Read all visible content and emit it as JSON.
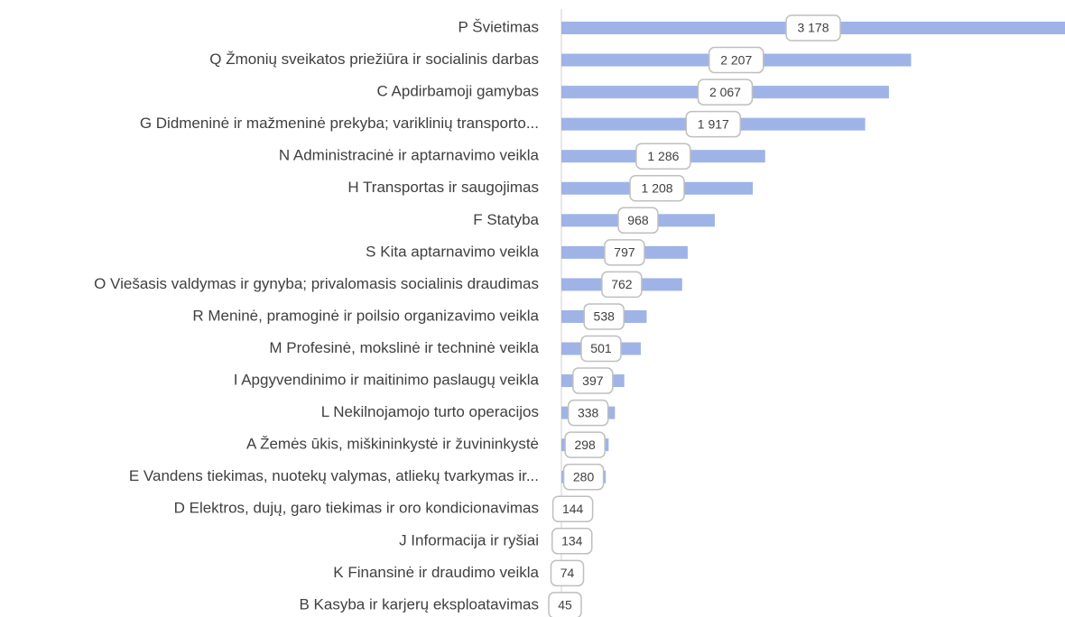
{
  "chart_data": {
    "type": "barh",
    "color": "#9fb3e6",
    "categories": [
      "P Švietimas",
      "Q Žmonių sveikatos priežiūra ir socialinis darbas",
      "C Apdirbamoji gamybas",
      "G Didmeninė ir mažmeninė prekyba; variklinių transporto...",
      "N Administracinė ir aptarnavimo veikla",
      "H Transportas ir saugojimas",
      "F Statyba",
      "S Kita aptarnavimo veikla",
      "O Viešasis valdymas ir gynyba; privalomasis socialinis draudimas",
      "R Meninė, pramoginė ir poilsio organizavimo veikla",
      "M Profesinė, mokslinė ir techninė veikla",
      "I Apgyvendinimo ir maitinimo paslaugų veikla",
      "L Nekilnojamojo turto operacijos",
      "A Žemės ūkis, miškininkystė ir žuvininkystė",
      "E Vandens tiekimas, nuotekų valymas, atliekų tvarkymas ir...",
      "D Elektros, dujų, garo tiekimas ir oro kondicionavimas",
      "J Informacija ir ryšiai",
      "K Finansinė ir draudimo veikla",
      "B Kasyba ir karjerų eksploatavimas"
    ],
    "values": [
      3178,
      2207,
      2067,
      1917,
      1286,
      1208,
      968,
      797,
      762,
      538,
      501,
      397,
      338,
      298,
      280,
      144,
      134,
      74,
      45
    ],
    "value_labels": [
      "3 178",
      "2 207",
      "2 067",
      "1 917",
      "1 286",
      "1 208",
      "968",
      "797",
      "762",
      "538",
      "501",
      "397",
      "338",
      "298",
      "280",
      "144",
      "134",
      "74",
      "45"
    ]
  }
}
